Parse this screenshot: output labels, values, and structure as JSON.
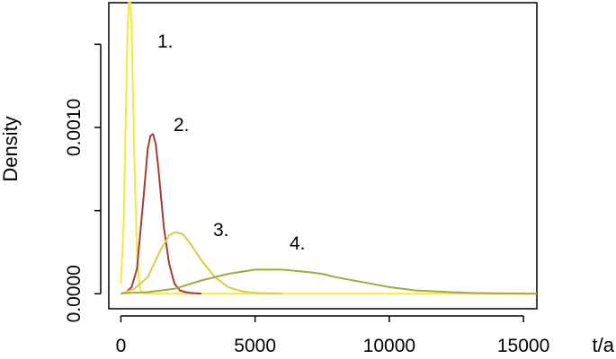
{
  "chart_data": {
    "type": "line",
    "title": "",
    "xlabel": "t/a",
    "ylabel": "Density",
    "xlim": [
      -450,
      15500
    ],
    "ylim": [
      -9e-05,
      0.00175
    ],
    "x_ticks": [
      0,
      5000,
      10000,
      15000
    ],
    "x_tick_labels": [
      "0",
      "5000",
      "10000",
      "15000"
    ],
    "y_ticks": [
      0,
      0.0005,
      0.001,
      0.0015
    ],
    "y_tick_labels": [
      "0.0000",
      "",
      "0.0010",
      ""
    ],
    "grid": false,
    "legend": "none",
    "series": [
      {
        "label": "1.",
        "color": "#f4e83c",
        "x": [
          0,
          100,
          200,
          250,
          300,
          350,
          400,
          450,
          500,
          600,
          700,
          800,
          1000,
          15500
        ],
        "y": [
          6e-05,
          0.0004,
          0.0012,
          0.0016,
          0.00175,
          0.00175,
          0.0016,
          0.0012,
          0.0008,
          0.00025,
          4e-05,
          5e-06,
          0,
          0
        ]
      },
      {
        "label": "2.",
        "color": "#a53c3c",
        "x": [
          0,
          200,
          400,
          600,
          800,
          1000,
          1100,
          1200,
          1300,
          1400,
          1600,
          1800,
          2000,
          2200,
          2400,
          2600,
          3000
        ],
        "y": [
          0,
          1e-05,
          4e-05,
          0.00015,
          0.0005,
          0.00087,
          0.00095,
          0.00096,
          0.0009,
          0.00075,
          0.0004,
          0.00018,
          6e-05,
          2e-05,
          1e-05,
          5e-06,
          0
        ]
      },
      {
        "label": "3.",
        "color": "#d6cc46",
        "x": [
          0,
          500,
          1000,
          1500,
          1800,
          2000,
          2300,
          2600,
          3000,
          3500,
          4000,
          4500,
          5000,
          6000
        ],
        "y": [
          0,
          3e-05,
          0.0001,
          0.00027,
          0.00035,
          0.00037,
          0.00036,
          0.0003,
          0.0002,
          0.0001,
          4e-05,
          1.5e-05,
          5e-06,
          0
        ]
      },
      {
        "label": "4.",
        "color": "#a6a83c",
        "x": [
          0,
          1000,
          2000,
          3000,
          4000,
          5000,
          6000,
          7000,
          7500,
          8000,
          9000,
          10000,
          11000,
          12000,
          13000,
          14000,
          15500
        ],
        "y": [
          2e-06,
          1e-05,
          3e-05,
          8e-05,
          0.00012,
          0.000145,
          0.000145,
          0.00013,
          0.00012,
          0.0001,
          7e-05,
          4e-05,
          2e-05,
          1.2e-05,
          5e-06,
          2e-06,
          0
        ]
      }
    ]
  }
}
